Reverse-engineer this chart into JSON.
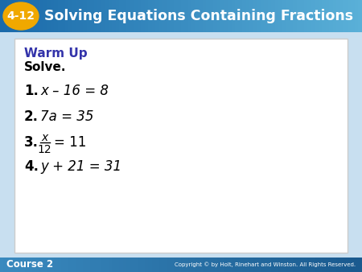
{
  "title_number": "4-12",
  "title_text": "Solving Equations Containing Fractions",
  "title_bg_top": "#1a6aaa",
  "title_bg_bottom": "#5ab0d8",
  "title_number_bg": "#f0a800",
  "title_text_color": "#ffffff",
  "warm_up_color": "#3333aa",
  "warm_up_text": "Warm Up",
  "solve_text": "Solve.",
  "items": [
    {
      "num": "1.",
      "equation": "x – 16 = 8"
    },
    {
      "num": "2.",
      "equation": "7a = 35"
    },
    {
      "num": "3.",
      "fraction_num": "x",
      "fraction_den": "12",
      "equation_rest": "= 11"
    },
    {
      "num": "4.",
      "equation": "y + 21 = 31"
    }
  ],
  "box_bg": "#ffffff",
  "box_edge": "#cccccc",
  "footer_bg_top": "#3a8abf",
  "footer_bg_bottom": "#1a5a8f",
  "footer_text": "Course 2",
  "copyright_text": "Copyright © by Holt, Rinehart and Winston. All Rights Reserved.",
  "main_bg": "#c8dff0"
}
